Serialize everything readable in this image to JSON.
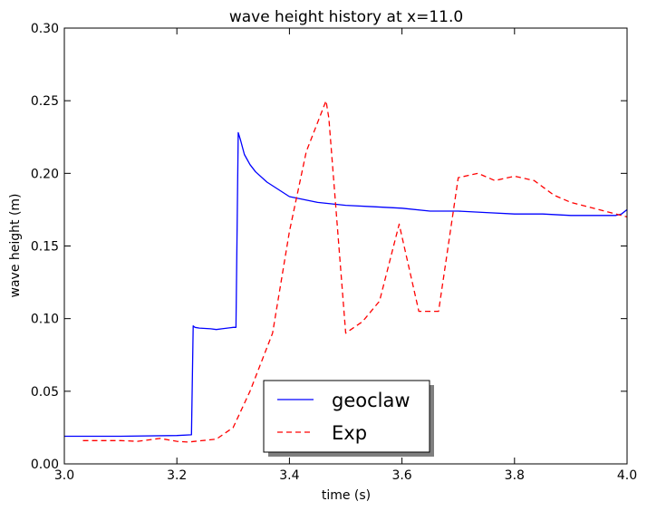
{
  "chart_data": {
    "type": "line",
    "title": "wave height history at x=11.0",
    "xlabel": "time (s)",
    "ylabel": "wave height (m)",
    "xlim": [
      3.0,
      4.0
    ],
    "ylim": [
      0.0,
      0.3
    ],
    "xticks": [
      "3.0",
      "3.2",
      "3.4",
      "3.6",
      "3.8",
      "4.0"
    ],
    "yticks": [
      "0.00",
      "0.05",
      "0.10",
      "0.15",
      "0.20",
      "0.25",
      "0.30"
    ],
    "grid": false,
    "legend_position": "lower-center",
    "series": [
      {
        "name": "geoclaw",
        "color": "#0000ff",
        "style": "solid",
        "x": [
          3.0,
          3.1,
          3.2,
          3.226,
          3.229,
          3.232,
          3.24,
          3.26,
          3.27,
          3.28,
          3.3,
          3.305,
          3.309,
          3.313,
          3.32,
          3.33,
          3.34,
          3.36,
          3.38,
          3.4,
          3.45,
          3.5,
          3.55,
          3.6,
          3.65,
          3.7,
          3.75,
          3.8,
          3.85,
          3.9,
          3.95,
          3.98,
          3.99,
          4.0
        ],
        "y": [
          0.019,
          0.019,
          0.0195,
          0.02,
          0.095,
          0.094,
          0.0935,
          0.093,
          0.0925,
          0.093,
          0.094,
          0.094,
          0.228,
          0.223,
          0.213,
          0.206,
          0.201,
          0.194,
          0.189,
          0.184,
          0.18,
          0.178,
          0.177,
          0.176,
          0.174,
          0.174,
          0.173,
          0.172,
          0.172,
          0.171,
          0.171,
          0.171,
          0.172,
          0.175
        ]
      },
      {
        "name": "Exp",
        "color": "#ff0000",
        "style": "dashed",
        "x": [
          3.033,
          3.1,
          3.13,
          3.17,
          3.2,
          3.22,
          3.27,
          3.3,
          3.33,
          3.37,
          3.4,
          3.43,
          3.45,
          3.465,
          3.47,
          3.5,
          3.53,
          3.56,
          3.595,
          3.63,
          3.665,
          3.7,
          3.735,
          3.765,
          3.8,
          3.835,
          3.87,
          3.9,
          3.95,
          4.0
        ],
        "y": [
          0.016,
          0.016,
          0.0155,
          0.0175,
          0.0155,
          0.015,
          0.017,
          0.025,
          0.05,
          0.09,
          0.16,
          0.215,
          0.235,
          0.25,
          0.238,
          0.09,
          0.098,
          0.112,
          0.165,
          0.105,
          0.105,
          0.197,
          0.2,
          0.195,
          0.198,
          0.195,
          0.185,
          0.18,
          0.175,
          0.17
        ]
      }
    ]
  }
}
